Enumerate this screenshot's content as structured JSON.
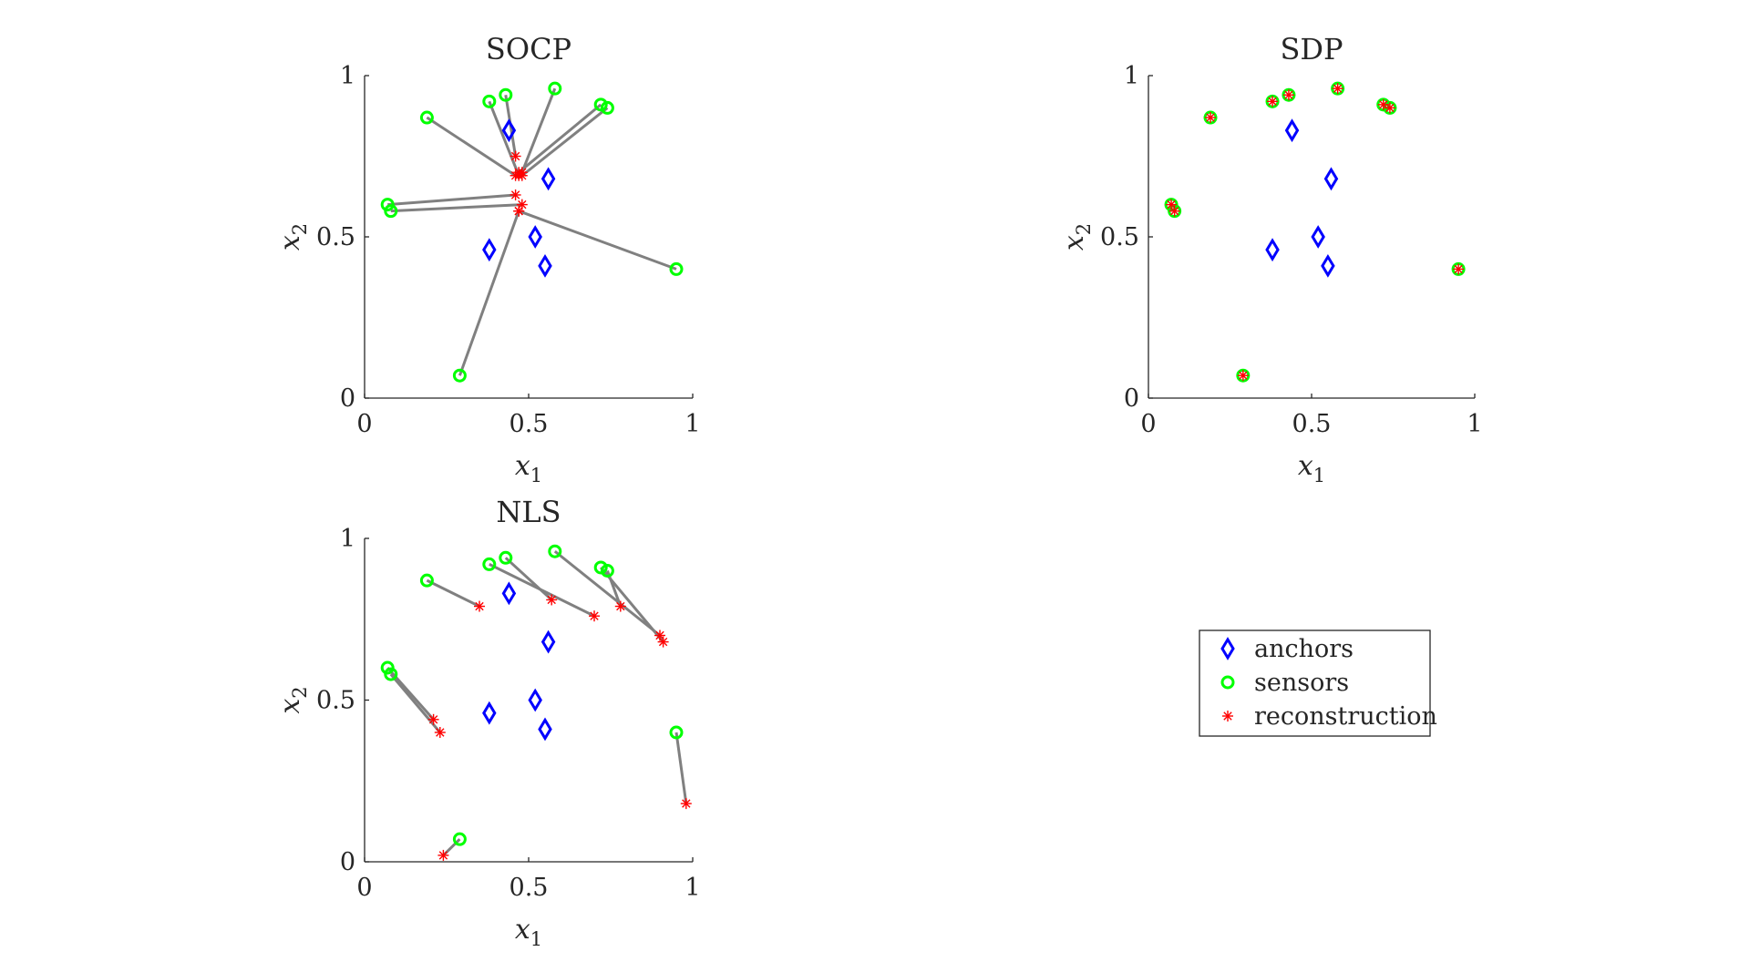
{
  "legend": {
    "entries": [
      {
        "key": "anchors",
        "label": "anchors",
        "marker": "diamond",
        "color": "#0000ff"
      },
      {
        "key": "sensors",
        "label": "sensors",
        "marker": "circle",
        "color": "#00ff00"
      },
      {
        "key": "reconstruction",
        "label": "reconstruction",
        "marker": "asterisk",
        "color": "#ff0000"
      }
    ]
  },
  "colors": {
    "connector": "#808080",
    "axis": "#262626"
  },
  "chart_data": [
    {
      "type": "scatter",
      "title": "SOCP",
      "xlabel": "x",
      "xlabel_sub": "1",
      "ylabel": "x",
      "ylabel_sub": "2",
      "xlim": [
        0,
        1
      ],
      "ylim": [
        0,
        1
      ],
      "xticks": [
        0,
        0.5,
        1
      ],
      "xtick_labels": [
        "0",
        "0.5",
        "1"
      ],
      "yticks": [
        0,
        0.5,
        1
      ],
      "ytick_labels": [
        "0",
        "0.5",
        "1"
      ],
      "grid": false,
      "anchors": [
        [
          0.44,
          0.83
        ],
        [
          0.56,
          0.68
        ],
        [
          0.38,
          0.46
        ],
        [
          0.52,
          0.5
        ],
        [
          0.55,
          0.41
        ]
      ],
      "sensors": [
        [
          0.38,
          0.92
        ],
        [
          0.43,
          0.94
        ],
        [
          0.58,
          0.96
        ],
        [
          0.72,
          0.91
        ],
        [
          0.74,
          0.9
        ],
        [
          0.19,
          0.87
        ],
        [
          0.07,
          0.6
        ],
        [
          0.08,
          0.58
        ],
        [
          0.95,
          0.4
        ],
        [
          0.29,
          0.07
        ]
      ],
      "reconstruction": [
        [
          0.47,
          0.69
        ],
        [
          0.46,
          0.75
        ],
        [
          0.48,
          0.7
        ],
        [
          0.47,
          0.7
        ],
        [
          0.48,
          0.69
        ],
        [
          0.46,
          0.69
        ],
        [
          0.46,
          0.63
        ],
        [
          0.48,
          0.6
        ],
        [
          0.47,
          0.58
        ],
        [
          0.47,
          0.58
        ]
      ]
    },
    {
      "type": "scatter",
      "title": "SDP",
      "xlabel": "x",
      "xlabel_sub": "1",
      "ylabel": "x",
      "ylabel_sub": "2",
      "xlim": [
        0,
        1
      ],
      "ylim": [
        0,
        1
      ],
      "xticks": [
        0,
        0.5,
        1
      ],
      "xtick_labels": [
        "0",
        "0.5",
        "1"
      ],
      "yticks": [
        0,
        0.5,
        1
      ],
      "ytick_labels": [
        "0",
        "0.5",
        "1"
      ],
      "grid": false,
      "anchors": [
        [
          0.44,
          0.83
        ],
        [
          0.56,
          0.68
        ],
        [
          0.38,
          0.46
        ],
        [
          0.52,
          0.5
        ],
        [
          0.55,
          0.41
        ]
      ],
      "sensors": [
        [
          0.38,
          0.92
        ],
        [
          0.43,
          0.94
        ],
        [
          0.58,
          0.96
        ],
        [
          0.72,
          0.91
        ],
        [
          0.74,
          0.9
        ],
        [
          0.19,
          0.87
        ],
        [
          0.07,
          0.6
        ],
        [
          0.08,
          0.58
        ],
        [
          0.95,
          0.4
        ],
        [
          0.29,
          0.07
        ]
      ],
      "reconstruction": [
        [
          0.38,
          0.92
        ],
        [
          0.43,
          0.94
        ],
        [
          0.58,
          0.96
        ],
        [
          0.72,
          0.91
        ],
        [
          0.74,
          0.9
        ],
        [
          0.19,
          0.87
        ],
        [
          0.07,
          0.6
        ],
        [
          0.08,
          0.58
        ],
        [
          0.95,
          0.4
        ],
        [
          0.29,
          0.07
        ]
      ]
    },
    {
      "type": "scatter",
      "title": "NLS",
      "xlabel": "x",
      "xlabel_sub": "1",
      "ylabel": "x",
      "ylabel_sub": "2",
      "xlim": [
        0,
        1
      ],
      "ylim": [
        0,
        1
      ],
      "xticks": [
        0,
        0.5,
        1
      ],
      "xtick_labels": [
        "0",
        "0.5",
        "1"
      ],
      "yticks": [
        0,
        0.5,
        1
      ],
      "ytick_labels": [
        "0",
        "0.5",
        "1"
      ],
      "grid": false,
      "anchors": [
        [
          0.44,
          0.83
        ],
        [
          0.56,
          0.68
        ],
        [
          0.38,
          0.46
        ],
        [
          0.52,
          0.5
        ],
        [
          0.55,
          0.41
        ]
      ],
      "sensors": [
        [
          0.38,
          0.92
        ],
        [
          0.43,
          0.94
        ],
        [
          0.58,
          0.96
        ],
        [
          0.72,
          0.91
        ],
        [
          0.74,
          0.9
        ],
        [
          0.19,
          0.87
        ],
        [
          0.07,
          0.6
        ],
        [
          0.08,
          0.58
        ],
        [
          0.95,
          0.4
        ],
        [
          0.29,
          0.07
        ]
      ],
      "reconstruction": [
        [
          0.7,
          0.76
        ],
        [
          0.57,
          0.81
        ],
        [
          0.9,
          0.7
        ],
        [
          0.91,
          0.68
        ],
        [
          0.78,
          0.79
        ],
        [
          0.35,
          0.79
        ],
        [
          0.21,
          0.44
        ],
        [
          0.23,
          0.4
        ],
        [
          0.98,
          0.18
        ],
        [
          0.24,
          0.02
        ]
      ]
    }
  ]
}
